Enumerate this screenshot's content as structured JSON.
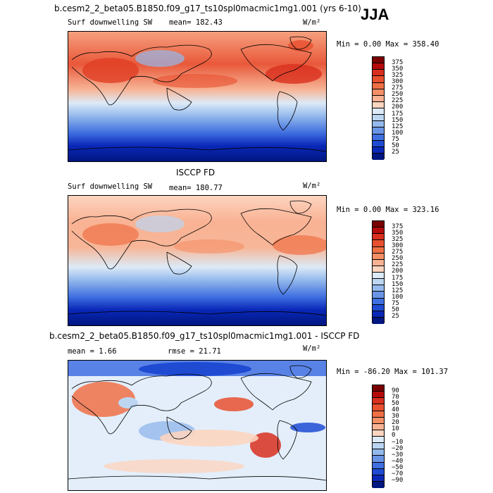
{
  "season": "JJA",
  "panels": [
    {
      "title": "b.cesm2_2_beta05.B1850.f09_g17_ts10spl0macmic1mg1.001 (yrs 6-10)",
      "variable": "Surf downwelling SW",
      "stat1": "mean= 182.43",
      "stat2": "",
      "units": "W/m²",
      "minmax": "Min =   0.00 Max = 358.40"
    },
    {
      "title": "ISCCP FD",
      "variable": "Surf downwelling SW",
      "stat1": "mean= 180.77",
      "stat2": "",
      "units": "W/m²",
      "minmax": "Min =   0.00 Max = 323.16"
    },
    {
      "title": "b.cesm2_2_beta05.B1850.f09_g17_ts10spl0macmic1mg1.001 - ISCCP FD",
      "variable": "",
      "stat1": "mean =   1.66",
      "stat2": "rmse =  21.71",
      "units": "W/m²",
      "minmax": "Min = -86.20 Max = 101.37"
    }
  ],
  "colorbar_abs": {
    "labels": [
      "375",
      "350",
      "325",
      "300",
      "275",
      "250",
      "225",
      "200",
      "175",
      "150",
      "125",
      "100",
      "75",
      "50",
      "25"
    ],
    "colors": [
      "#7a0000",
      "#b50a0a",
      "#d92f1e",
      "#e8502f",
      "#f07046",
      "#f58f66",
      "#f9b293",
      "#fcd5c0",
      "#dceaf7",
      "#bcd6f2",
      "#94b9ec",
      "#6a95e6",
      "#3f6fe0",
      "#1f4bd3",
      "#0a28b8",
      "#001680"
    ]
  },
  "colorbar_diff": {
    "labels": [
      "90",
      "70",
      "50",
      "40",
      "30",
      "20",
      "10",
      "0",
      "−10",
      "−20",
      "−30",
      "−40",
      "−50",
      "−70",
      "−90"
    ],
    "colors": [
      "#7a0000",
      "#b50a0a",
      "#d92f1e",
      "#e8502f",
      "#f07046",
      "#f58f66",
      "#f9b293",
      "#fcd5c0",
      "#dceaf7",
      "#bcd6f2",
      "#94b9ec",
      "#6a95e6",
      "#3f6fe0",
      "#1f4bd3",
      "#0a28b8",
      "#001680"
    ]
  }
}
